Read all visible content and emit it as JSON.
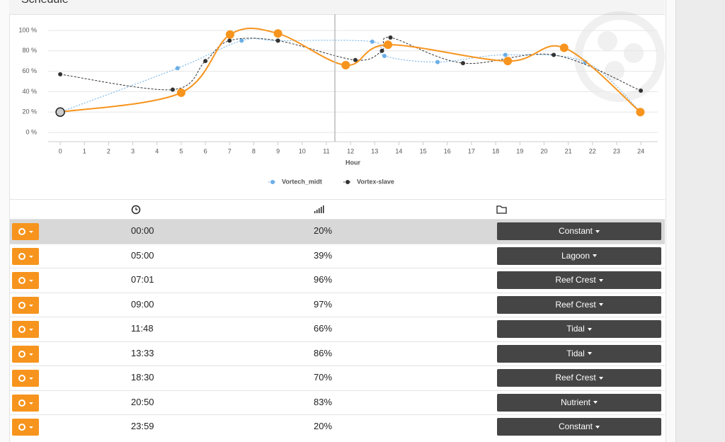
{
  "title": "Schedule",
  "chart_data": {
    "type": "line",
    "xlabel": "Hour",
    "xlim": [
      -0.5,
      24.7
    ],
    "ylim": [
      -9,
      109
    ],
    "xticks": [
      0,
      1,
      2,
      3,
      4,
      5,
      6,
      7,
      8,
      9,
      10,
      11,
      12,
      13,
      14,
      15,
      16,
      17,
      18,
      19,
      20,
      21,
      22,
      23,
      24
    ],
    "yticks": [
      {
        "value": 0,
        "label": "0 %"
      },
      {
        "value": 20,
        "label": "20 %"
      },
      {
        "value": 40,
        "label": "40 %"
      },
      {
        "value": 60,
        "label": "60 %"
      },
      {
        "value": 80,
        "label": "80 %"
      },
      {
        "value": 100,
        "label": "100 %"
      }
    ],
    "grid": true,
    "legend": "bottom",
    "series": [
      {
        "color": "#f7941d",
        "x": [
          0,
          5,
          7.02,
          9,
          11.8,
          13.55,
          18.5,
          20.83,
          23.98
        ],
        "values": [
          20,
          39,
          96,
          97,
          66,
          86,
          70,
          83,
          20
        ]
      },
      {
        "name": "Vortech_midt",
        "color": "#6aaee8",
        "x": [
          0,
          4.85,
          7.5,
          9,
          12.9,
          13.4,
          15.6,
          18.4,
          21.7,
          24
        ],
        "values": [
          20,
          63,
          90,
          90,
          89,
          75,
          69,
          76,
          69,
          20
        ]
      },
      {
        "name": "Vortex-slave",
        "color": "#333333",
        "x": [
          0,
          4.65,
          6,
          7,
          9,
          12.2,
          13.3,
          13.65,
          16.65,
          20.4,
          24
        ],
        "values": [
          57,
          42,
          70,
          90,
          90,
          71,
          80,
          93,
          68,
          76,
          41
        ]
      }
    ]
  },
  "table": {
    "rows": [
      [
        "00:00",
        "20%",
        "Constant"
      ],
      [
        "05:00",
        "39%",
        "Lagoon"
      ],
      [
        "07:01",
        "96%",
        "Reef Crest"
      ],
      [
        "09:00",
        "97%",
        "Reef Crest"
      ],
      [
        "11:48",
        "66%",
        "Tidal"
      ],
      [
        "13:33",
        "86%",
        "Tidal"
      ],
      [
        "18:30",
        "70%",
        "Reef Crest"
      ],
      [
        "20:50",
        "83%",
        "Nutrient"
      ],
      [
        "23:59",
        "20%",
        "Constant"
      ]
    ]
  }
}
